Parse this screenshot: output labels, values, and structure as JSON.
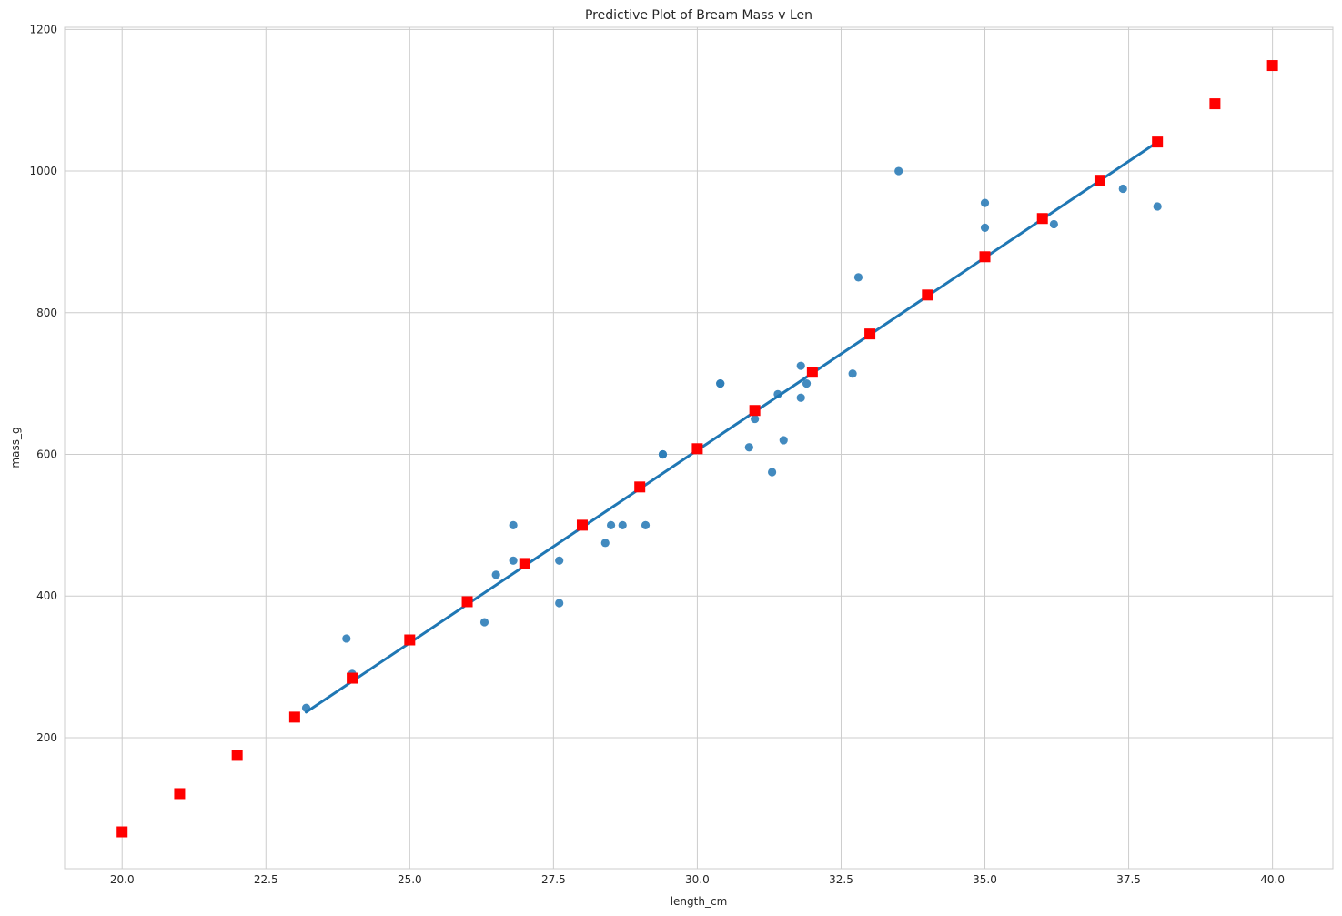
{
  "chart_data": {
    "type": "scatter",
    "title": "Predictive Plot of Bream Mass v Len",
    "xlabel": "length_cm",
    "ylabel": "mass_g",
    "xlim": [
      19,
      41.05
    ],
    "ylim": [
      15,
      1203
    ],
    "x_ticks": [
      20.0,
      22.5,
      25.0,
      27.5,
      30.0,
      32.5,
      35.0,
      37.5,
      40.0
    ],
    "x_tick_labels": [
      "20.0",
      "22.5",
      "25.0",
      "27.5",
      "30.0",
      "32.5",
      "35.0",
      "37.5",
      "40.0"
    ],
    "y_ticks": [
      200,
      400,
      600,
      800,
      1000,
      1200
    ],
    "y_tick_labels": [
      "200",
      "400",
      "600",
      "800",
      "1000",
      "1200"
    ],
    "grid": true,
    "colors": {
      "observed": "#2e7db8",
      "fit_line": "#1f77b4",
      "predicted": "#ff0000",
      "grid": "#cccccc",
      "axes": "#cccccc"
    },
    "series": [
      {
        "kind": "scatter",
        "marker": "circle",
        "x": [
          23.2,
          24.0,
          23.9,
          26.3,
          26.5,
          26.8,
          26.8,
          27.6,
          27.6,
          28.4,
          28.5,
          28.7,
          29.1,
          29.4,
          29.4,
          30.4,
          30.4,
          30.9,
          31.0,
          31.3,
          31.4,
          31.5,
          31.8,
          31.8,
          31.9,
          32.7,
          32.8,
          33.5,
          35.0,
          35.0,
          36.2,
          37.4,
          38.0
        ],
        "y": [
          242,
          290,
          340,
          363,
          430,
          450,
          500,
          390,
          450,
          475,
          500,
          500,
          500,
          600,
          600,
          700,
          700,
          610,
          650,
          575,
          685,
          620,
          680,
          725,
          700,
          714,
          850,
          1000,
          920,
          955,
          925,
          975,
          950
        ]
      },
      {
        "kind": "line",
        "x": [
          23.2,
          38.0
        ],
        "y": [
          236,
          1041
        ]
      },
      {
        "kind": "scatter",
        "marker": "square",
        "x": [
          20,
          21,
          22,
          23,
          24,
          25,
          26,
          27,
          28,
          29,
          30,
          31,
          32,
          33,
          34,
          35,
          36,
          37,
          38,
          39,
          40
        ],
        "y": [
          67,
          121,
          175,
          229,
          284,
          338,
          392,
          446,
          500,
          554,
          608,
          662,
          716,
          770,
          825,
          879,
          933,
          987,
          1041,
          1095,
          1149
        ]
      }
    ]
  }
}
